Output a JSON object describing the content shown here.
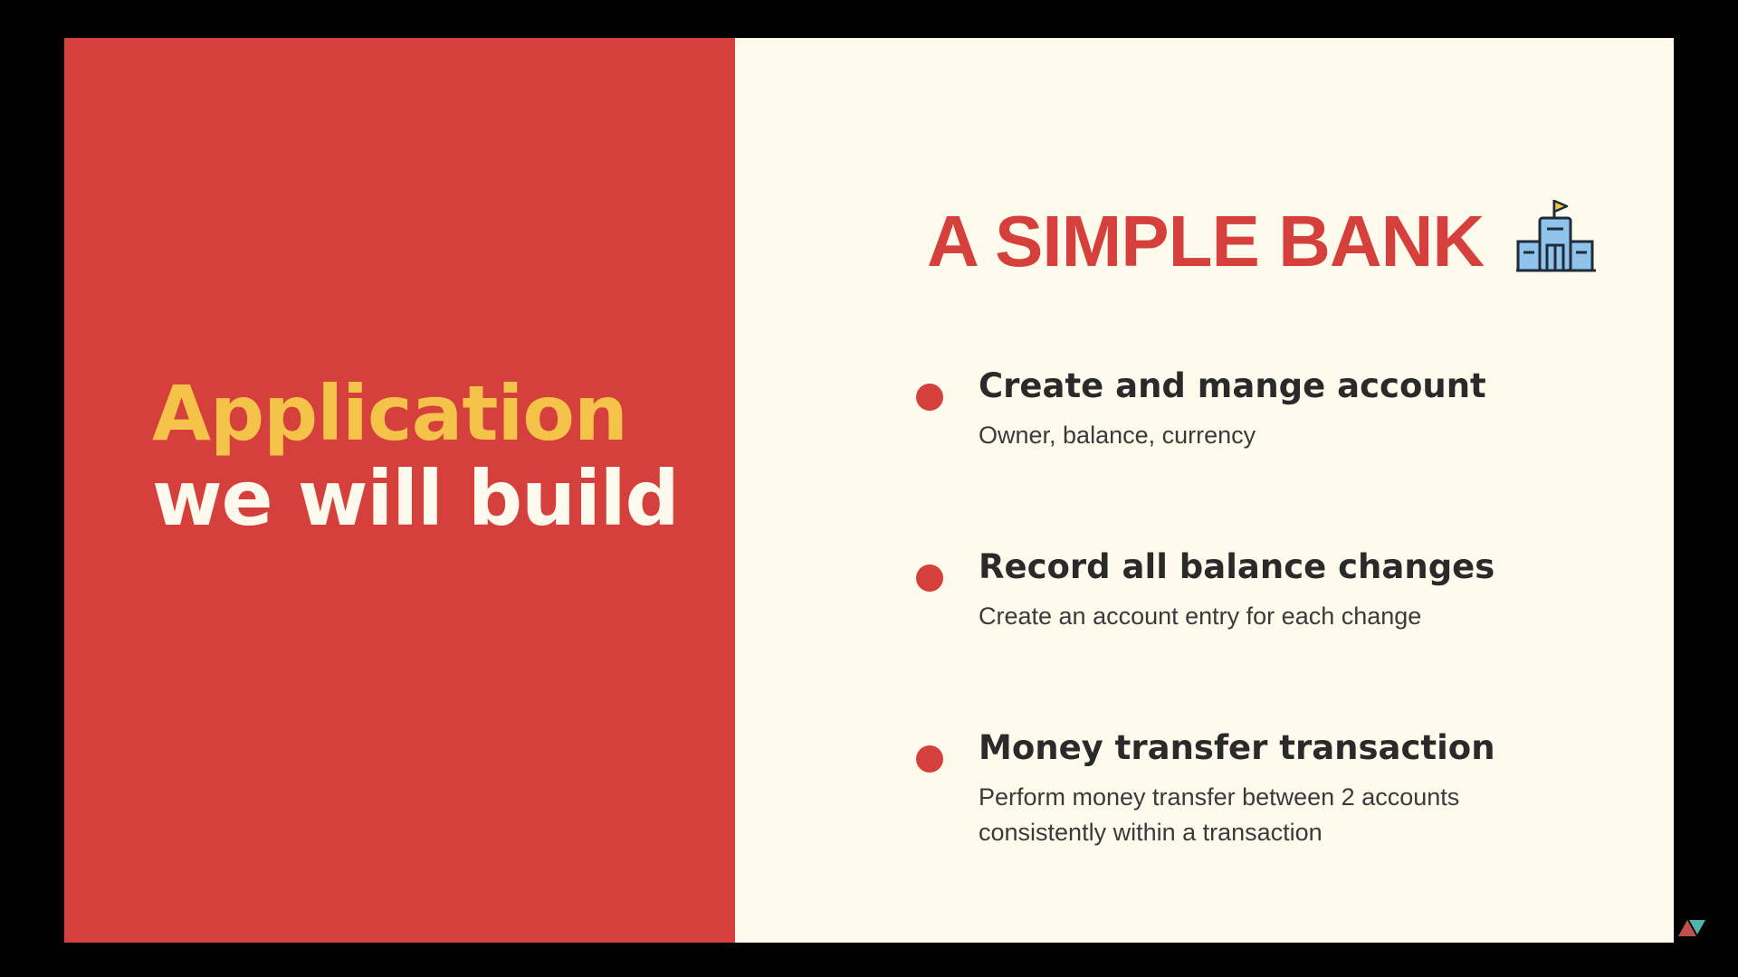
{
  "left": {
    "heading_line1": "Application",
    "heading_line2": "we will build"
  },
  "right": {
    "title": "A SIMPLE BANK",
    "title_icon": "bank-building-icon",
    "features": [
      {
        "title": "Create and mange account",
        "description": "Owner, balance, currency"
      },
      {
        "title": "Record all balance changes",
        "description": "Create an account entry for each change"
      },
      {
        "title": "Money transfer transaction",
        "description": "Perform money transfer between 2 accounts consistently within a transaction"
      }
    ]
  },
  "colors": {
    "background": "#000000",
    "accent_red": "#d5403d",
    "heading_yellow": "#f5c24a",
    "cream": "#fefaec",
    "text_dark": "#2a2a2a"
  }
}
